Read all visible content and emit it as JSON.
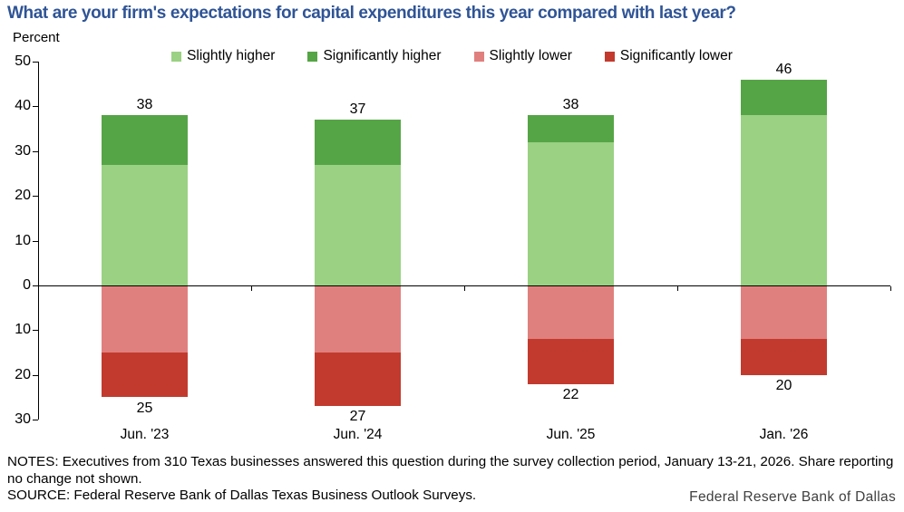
{
  "title": "What are your firm's expectations for capital expenditures this year compared with last year?",
  "y_axis_label": "Percent",
  "colors": {
    "title_blue": "#2f5496",
    "slightly_higher": "#9ad183",
    "significantly_higher": "#55a546",
    "slightly_lower": "#e0807e",
    "significantly_lower": "#c23a2e"
  },
  "chart_data": {
    "type": "bar",
    "stacked": true,
    "title": "What are your firm's expectations for capital expenditures this year compared with last year?",
    "ylabel": "Percent",
    "xlabel": "",
    "categories": [
      "Jun. '23",
      "Jun. '24",
      "Jun. '25",
      "Jan. '26"
    ],
    "series": [
      {
        "name": "Slightly higher",
        "color": "#9ad183",
        "values": [
          27,
          27,
          32,
          38
        ]
      },
      {
        "name": "Significantly higher",
        "color": "#55a546",
        "values": [
          11,
          10,
          6,
          8
        ]
      },
      {
        "name": "Slightly lower",
        "color": "#e0807e",
        "values": [
          -15,
          -15,
          -12,
          -12
        ]
      },
      {
        "name": "Significantly lower",
        "color": "#c23a2e",
        "values": [
          -10,
          -12,
          -10,
          -8
        ]
      }
    ],
    "bar_total_labels": {
      "positive": [
        38,
        37,
        38,
        46
      ],
      "negative": [
        25,
        27,
        22,
        20
      ]
    },
    "y_ticks": [
      50,
      40,
      30,
      20,
      10,
      0,
      -10,
      -20,
      -30
    ],
    "y_tick_labels_shown_as_absolute": true,
    "ylim": [
      -30,
      50
    ],
    "grid": false,
    "legend_position": "top"
  },
  "notes": "NOTES: Executives from 310 Texas businesses answered this question during the survey collection period, January 13-21, 2026. Share reporting no change not shown.",
  "source": "SOURCE: Federal Reserve Bank of Dallas Texas Business Outlook Surveys.",
  "footer": {
    "brand": "Federal Reserve Bank of Dallas"
  }
}
